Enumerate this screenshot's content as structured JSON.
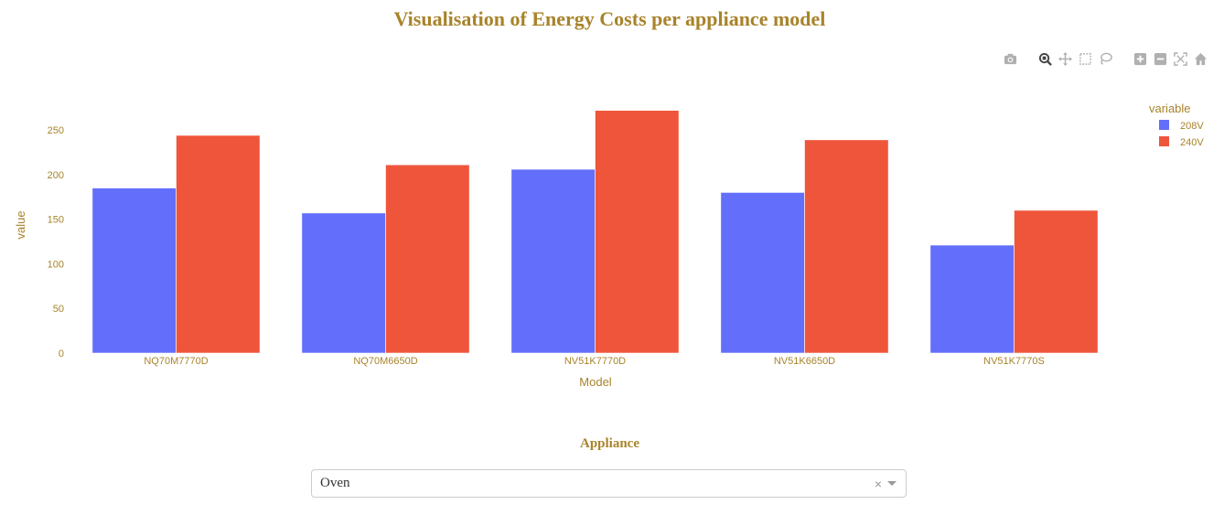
{
  "page": {
    "title": "Visualisation of Energy Costs per appliance model",
    "appliance_label": "Appliance"
  },
  "dropdown": {
    "value": "Oven",
    "clear": "×"
  },
  "modebar": {
    "icons": [
      "camera-icon",
      "zoom-icon",
      "pan-icon",
      "box-select-icon",
      "lasso-icon",
      "zoom-in-icon",
      "zoom-out-icon",
      "autoscale-icon",
      "home-icon",
      "plotly-logo-icon"
    ]
  },
  "colors": {
    "text": "#a8832a",
    "series_208": "#636efa",
    "series_240": "#ef553b"
  },
  "chart_data": {
    "type": "bar",
    "title": "Visualisation of Energy Costs per appliance model",
    "xlabel": "Model",
    "ylabel": "value",
    "categories": [
      "NQ70M7770D",
      "NQ70M6650D",
      "NV51K7770D",
      "NV51K6650D",
      "NV51K7770S"
    ],
    "series": [
      {
        "name": "208V",
        "values": [
          185,
          157,
          206,
          180,
          121
        ],
        "color": "#636efa"
      },
      {
        "name": "240V",
        "values": [
          244,
          211,
          272,
          239,
          160
        ],
        "color": "#ef553b"
      }
    ],
    "legend_title": "variable",
    "legend_position": "top-right",
    "ylim": [
      0,
      285
    ],
    "yticks": [
      0,
      50,
      100,
      150,
      200,
      250
    ],
    "grid": false
  }
}
